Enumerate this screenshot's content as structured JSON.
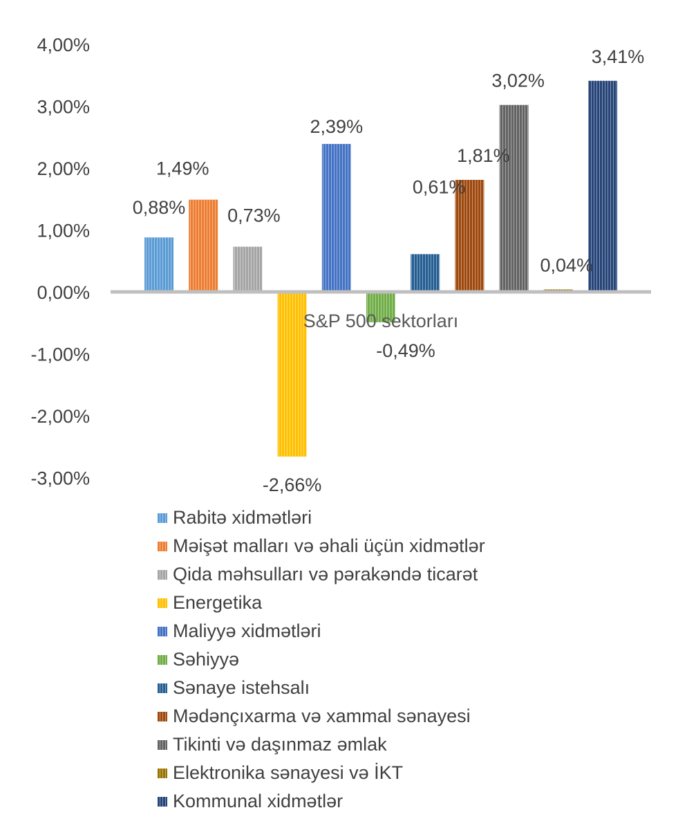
{
  "chart_data": {
    "type": "bar",
    "xlabel": "S&P 500 sektorları",
    "ylabel": "",
    "ylim": [
      -3,
      4
    ],
    "yticks": [
      "-3,00%",
      "-2,00%",
      "-1,00%",
      "0,00%",
      "1,00%",
      "2,00%",
      "3,00%",
      "4,00%"
    ],
    "grid": false,
    "legend_position": "bottom",
    "series": [
      {
        "name": "Rabitə xidmətləri",
        "value": 0.88,
        "label": "0,88%",
        "color": "#5B9BD5"
      },
      {
        "name": "Məişət malları və əhali üçün xidmətlər",
        "value": 1.49,
        "label": "1,49%",
        "color": "#ED7D31"
      },
      {
        "name": "Qida məhsulları və pərakəndə ticarət",
        "value": 0.73,
        "label": "0,73%",
        "color": "#A5A5A5"
      },
      {
        "name": "Energetika",
        "value": -2.66,
        "label": "-2,66%",
        "color": "#FFC000"
      },
      {
        "name": "Maliyyə xidmətləri",
        "value": 2.39,
        "label": "2,39%",
        "color": "#4472C4"
      },
      {
        "name": "Səhiyyə",
        "value": -0.49,
        "label": "-0,49%",
        "color": "#70AD47"
      },
      {
        "name": "Sənaye istehsalı",
        "value": 0.61,
        "label": "0,61%",
        "color": "#255E91"
      },
      {
        "name": "Mədənçıxarma və xammal sənayesi",
        "value": 1.81,
        "label": "1,81%",
        "color": "#9E480E"
      },
      {
        "name": "Tikinti və daşınmaz əmlak",
        "value": 3.02,
        "label": "3,02%",
        "color": "#636363"
      },
      {
        "name": "Elektronika sənayesi və İKT",
        "value": 0.04,
        "label": "0,04%",
        "color": "#997300"
      },
      {
        "name": "Kommunal xidmətlər",
        "value": 3.41,
        "label": "3,41%",
        "color": "#264478"
      }
    ]
  }
}
